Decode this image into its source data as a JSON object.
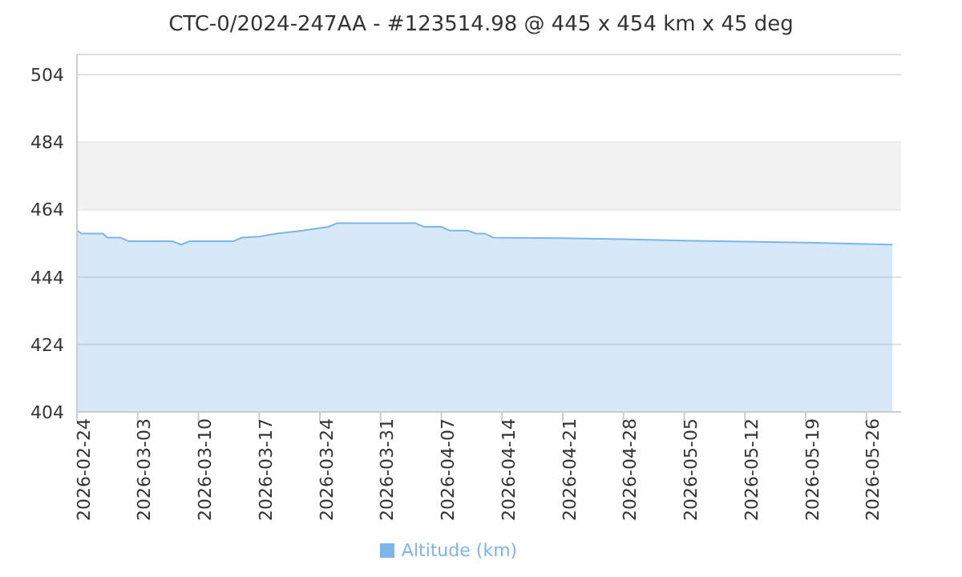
{
  "chart_data": {
    "type": "area",
    "title": "CTC-0/2024-247AA - #123514.98 @ 445 x 454 km x 45 deg",
    "x": [
      "2026-02-24",
      "2026-02-24T12:00",
      "2026-02-27",
      "2026-02-27T12:00",
      "2026-03-01",
      "2026-03-02",
      "2026-03-07",
      "2026-03-08",
      "2026-03-09",
      "2026-03-14",
      "2026-03-15",
      "2026-03-17",
      "2026-03-19",
      "2026-03-22",
      "2026-03-25",
      "2026-03-26",
      "2026-04-04",
      "2026-04-05",
      "2026-04-07",
      "2026-04-08",
      "2026-04-10",
      "2026-04-11",
      "2026-04-12",
      "2026-04-13",
      "2026-04-21",
      "2026-04-28",
      "2026-05-05",
      "2026-05-12",
      "2026-05-19",
      "2026-05-26",
      "2026-05-29"
    ],
    "series": [
      {
        "name": "Altitude (km)",
        "color": "#7cb5ec",
        "values": [
          457.8,
          456.9,
          456.9,
          455.7,
          455.7,
          454.6,
          454.6,
          453.6,
          454.6,
          454.6,
          455.7,
          456,
          456.9,
          457.8,
          458.9,
          460,
          460,
          458.9,
          458.9,
          457.8,
          457.8,
          456.9,
          456.9,
          455.7,
          455.5,
          455.2,
          454.8,
          454.5,
          454.2,
          453.8,
          453.6
        ]
      }
    ],
    "xlim": [
      "2026-02-24",
      "2026-05-30"
    ],
    "xticks": [
      "2026-02-24",
      "2026-03-03",
      "2026-03-10",
      "2026-03-17",
      "2026-03-24",
      "2026-03-31",
      "2026-04-07",
      "2026-04-14",
      "2026-04-21",
      "2026-04-28",
      "2026-05-05",
      "2026-05-12",
      "2026-05-19",
      "2026-05-26"
    ],
    "ylim": [
      404,
      510
    ],
    "yticks": [
      404,
      424,
      444,
      464,
      484,
      504
    ],
    "bands": [
      {
        "axis": "y",
        "from": 464,
        "to": 484,
        "color": "#f2f2f2"
      }
    ],
    "grid": "y",
    "legend": "bottom",
    "marker": "none"
  }
}
